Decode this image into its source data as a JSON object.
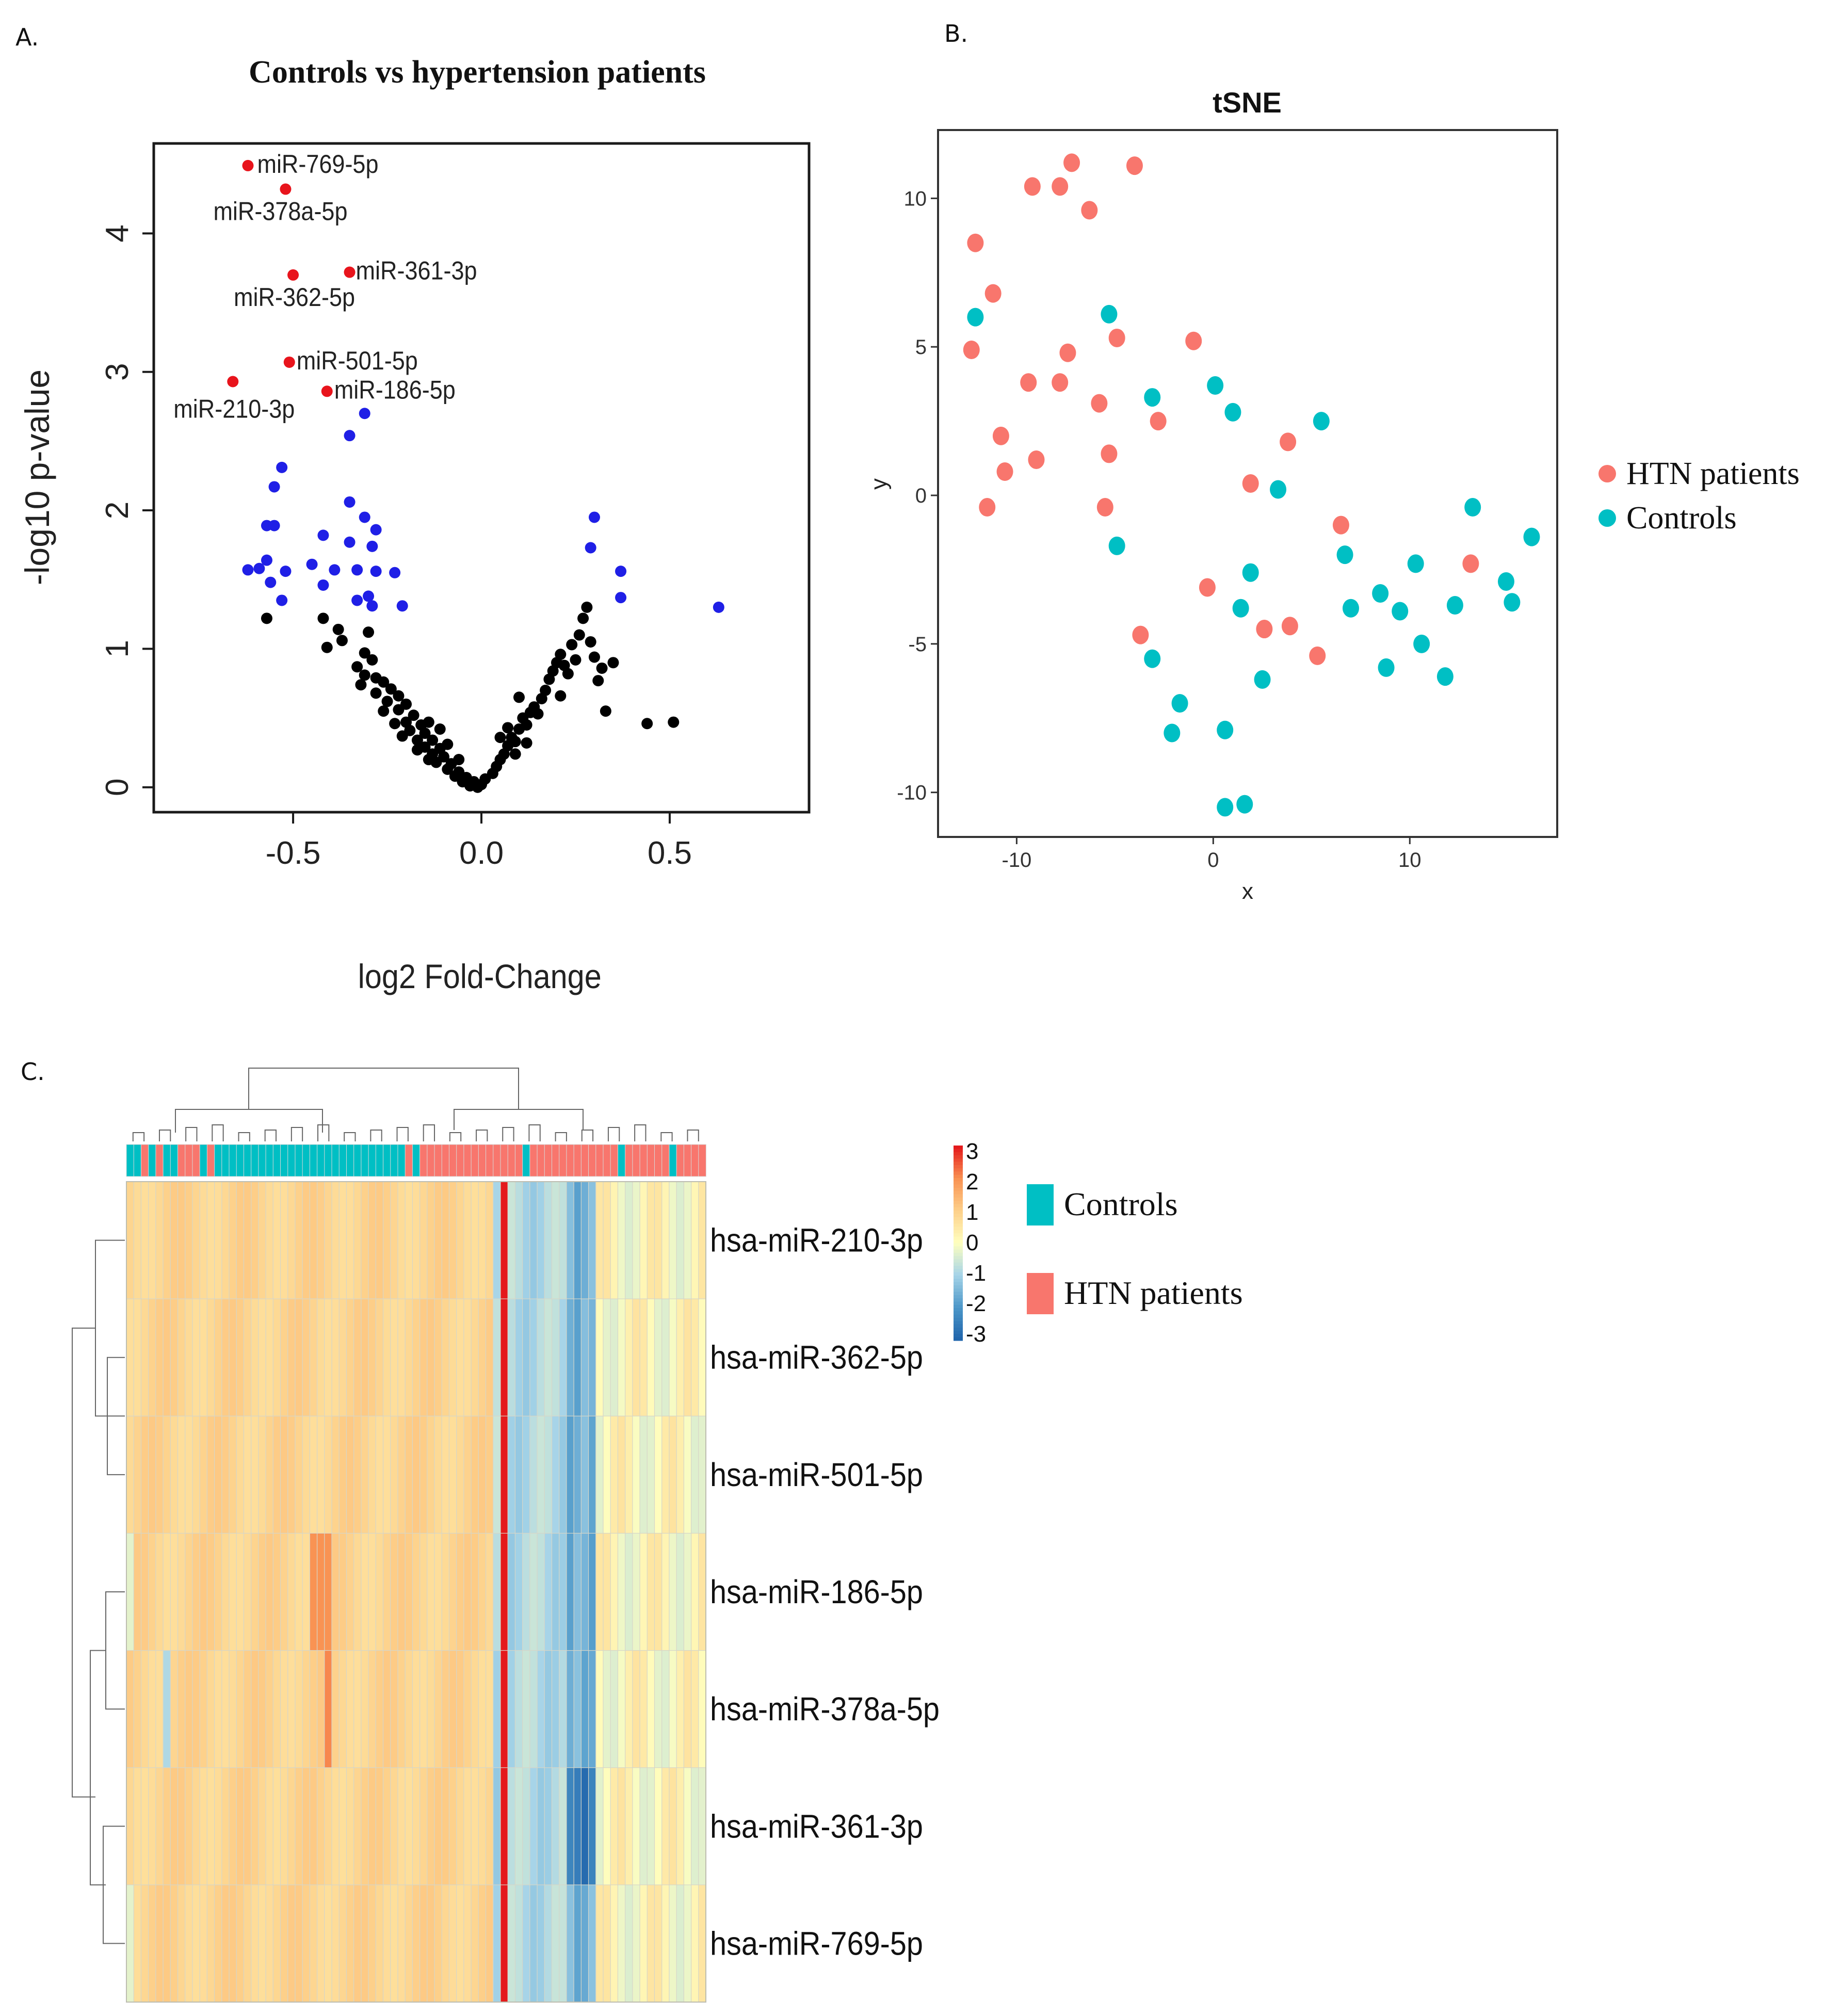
{
  "panel_labels": {
    "a": "A.",
    "b": "B.",
    "c": "C."
  },
  "chart_data": [
    {
      "type": "scatter",
      "panel": "A.",
      "title": "Controls vs hypertension patients",
      "xlabel": "log2 Fold-Change",
      "ylabel": "-log10 p-value",
      "xlim": [
        -0.87,
        0.87
      ],
      "ylim": [
        -0.18,
        4.65
      ],
      "xticks": [
        "-0.5",
        "0.0",
        "0.5"
      ],
      "xtick_values": [
        -0.5,
        0,
        0.5
      ],
      "yticks": [
        "0",
        "1",
        "2",
        "3",
        "4"
      ],
      "ytick_values": [
        0,
        1,
        2,
        3,
        4
      ],
      "colors": {
        "labeled": "#e8141c",
        "significant": "#1f1fe6",
        "other": "#000000"
      },
      "labeled_points": [
        {
          "label": "miR-769-5p",
          "x": -0.62,
          "y": 4.49
        },
        {
          "label": "miR-378a-5p",
          "x": -0.52,
          "y": 4.32
        },
        {
          "label": "miR-361-3p",
          "x": -0.35,
          "y": 3.72
        },
        {
          "label": "miR-362-5p",
          "x": -0.5,
          "y": 3.7
        },
        {
          "label": "miR-501-5p",
          "x": -0.51,
          "y": 3.07
        },
        {
          "label": "miR-210-3p",
          "x": -0.66,
          "y": 2.93
        },
        {
          "label": "miR-186-5p",
          "x": -0.41,
          "y": 2.86
        }
      ],
      "significant_points": [
        [
          -0.31,
          2.7
        ],
        [
          -0.35,
          2.54
        ],
        [
          -0.53,
          2.31
        ],
        [
          -0.55,
          2.17
        ],
        [
          -0.35,
          2.06
        ],
        [
          -0.57,
          1.89
        ],
        [
          -0.55,
          1.89
        ],
        [
          -0.31,
          1.95
        ],
        [
          -0.28,
          1.86
        ],
        [
          -0.42,
          1.82
        ],
        [
          -0.35,
          1.77
        ],
        [
          -0.29,
          1.74
        ],
        [
          -0.45,
          1.61
        ],
        [
          -0.57,
          1.64
        ],
        [
          -0.59,
          1.58
        ],
        [
          -0.62,
          1.57
        ],
        [
          -0.52,
          1.56
        ],
        [
          -0.39,
          1.57
        ],
        [
          -0.33,
          1.57
        ],
        [
          -0.28,
          1.56
        ],
        [
          -0.23,
          1.55
        ],
        [
          -0.56,
          1.48
        ],
        [
          -0.42,
          1.46
        ],
        [
          -0.3,
          1.38
        ],
        [
          -0.33,
          1.35
        ],
        [
          -0.53,
          1.35
        ],
        [
          -0.21,
          1.31
        ],
        [
          -0.29,
          1.31
        ],
        [
          0.3,
          1.95
        ],
        [
          0.29,
          1.73
        ],
        [
          0.37,
          1.56
        ],
        [
          0.37,
          1.37
        ],
        [
          0.63,
          1.3
        ]
      ],
      "other_points": [
        [
          -0.57,
          1.22
        ],
        [
          -0.42,
          1.22
        ],
        [
          -0.38,
          1.14
        ],
        [
          -0.3,
          1.12
        ],
        [
          -0.41,
          1.01
        ],
        [
          -0.37,
          1.06
        ],
        [
          -0.31,
          0.97
        ],
        [
          -0.29,
          0.92
        ],
        [
          -0.33,
          0.87
        ],
        [
          -0.31,
          0.81
        ],
        [
          -0.28,
          0.79
        ],
        [
          -0.32,
          0.74
        ],
        [
          -0.26,
          0.76
        ],
        [
          -0.24,
          0.71
        ],
        [
          -0.28,
          0.68
        ],
        [
          -0.22,
          0.66
        ],
        [
          -0.25,
          0.62
        ],
        [
          -0.2,
          0.6
        ],
        [
          -0.22,
          0.56
        ],
        [
          -0.18,
          0.52
        ],
        [
          -0.2,
          0.47
        ],
        [
          -0.16,
          0.45
        ],
        [
          -0.19,
          0.41
        ],
        [
          -0.15,
          0.39
        ],
        [
          -0.17,
          0.34
        ],
        [
          -0.13,
          0.34
        ],
        [
          -0.15,
          0.29
        ],
        [
          -0.11,
          0.28
        ],
        [
          -0.13,
          0.24
        ],
        [
          -0.1,
          0.22
        ],
        [
          -0.12,
          0.18
        ],
        [
          -0.08,
          0.17
        ],
        [
          -0.09,
          0.13
        ],
        [
          -0.06,
          0.11
        ],
        [
          -0.07,
          0.08
        ],
        [
          -0.04,
          0.07
        ],
        [
          -0.05,
          0.04
        ],
        [
          -0.02,
          0.04
        ],
        [
          -0.03,
          0.01
        ],
        [
          0.0,
          0.02
        ],
        [
          -0.01,
          0.0
        ],
        [
          -0.23,
          0.46
        ],
        [
          -0.14,
          0.47
        ],
        [
          -0.11,
          0.42
        ],
        [
          -0.21,
          0.37
        ],
        [
          -0.17,
          0.27
        ],
        [
          -0.09,
          0.31
        ],
        [
          -0.14,
          0.2
        ],
        [
          -0.06,
          0.2
        ],
        [
          -0.26,
          0.55
        ],
        [
          0.01,
          0.06
        ],
        [
          0.03,
          0.1
        ],
        [
          0.04,
          0.15
        ],
        [
          0.05,
          0.2
        ],
        [
          0.06,
          0.24
        ],
        [
          0.07,
          0.3
        ],
        [
          0.08,
          0.36
        ],
        [
          0.09,
          0.33
        ],
        [
          0.07,
          0.43
        ],
        [
          0.1,
          0.42
        ],
        [
          0.11,
          0.5
        ],
        [
          0.12,
          0.45
        ],
        [
          0.13,
          0.54
        ],
        [
          0.14,
          0.58
        ],
        [
          0.15,
          0.53
        ],
        [
          0.16,
          0.64
        ],
        [
          0.17,
          0.7
        ],
        [
          0.18,
          0.78
        ],
        [
          0.19,
          0.84
        ],
        [
          0.2,
          0.9
        ],
        [
          0.21,
          0.96
        ],
        [
          0.22,
          0.88
        ],
        [
          0.23,
          0.82
        ],
        [
          0.24,
          1.03
        ],
        [
          0.25,
          0.92
        ],
        [
          0.26,
          1.1
        ],
        [
          0.27,
          1.22
        ],
        [
          0.28,
          1.3
        ],
        [
          0.29,
          1.05
        ],
        [
          0.3,
          0.94
        ],
        [
          0.31,
          0.77
        ],
        [
          0.32,
          0.86
        ],
        [
          0.35,
          0.9
        ],
        [
          0.33,
          0.55
        ],
        [
          0.44,
          0.46
        ],
        [
          0.51,
          0.47
        ],
        [
          0.05,
          0.36
        ],
        [
          0.09,
          0.24
        ],
        [
          0.12,
          0.32
        ],
        [
          0.1,
          0.65
        ],
        [
          0.21,
          0.66
        ]
      ]
    },
    {
      "type": "scatter",
      "panel": "B.",
      "title": "tSNE",
      "xlabel": "x",
      "ylabel": "y",
      "xlim": [
        -14,
        17.5
      ],
      "ylim": [
        -11.5,
        12.3
      ],
      "xticks": [
        "-10",
        "0",
        "10"
      ],
      "xtick_values": [
        -10,
        0,
        10
      ],
      "yticks": [
        "-10",
        "-5",
        "0",
        "5",
        "10"
      ],
      "ytick_values": [
        -10,
        -5,
        0,
        5,
        10
      ],
      "legend_placement": "right",
      "series": [
        {
          "name": "HTN patients",
          "color": "#f8766d",
          "points": [
            [
              -7.2,
              11.2
            ],
            [
              -4,
              11.1
            ],
            [
              -9.2,
              10.4
            ],
            [
              -7.8,
              10.4
            ],
            [
              -6.3,
              9.6
            ],
            [
              -12.1,
              8.5
            ],
            [
              -11.2,
              6.8
            ],
            [
              -12.3,
              4.9
            ],
            [
              -7.4,
              4.8
            ],
            [
              -4.9,
              5.3
            ],
            [
              -1,
              5.2
            ],
            [
              -9.4,
              3.8
            ],
            [
              -7.8,
              3.8
            ],
            [
              -5.8,
              3.1
            ],
            [
              -2.8,
              2.5
            ],
            [
              -10.8,
              2
            ],
            [
              -9,
              1.2
            ],
            [
              -5.3,
              1.4
            ],
            [
              3.8,
              1.8
            ],
            [
              -10.6,
              0.8
            ],
            [
              -11.5,
              -0.4
            ],
            [
              -5.5,
              -0.4
            ],
            [
              1.9,
              0.4
            ],
            [
              6.5,
              -1
            ],
            [
              13.1,
              -2.3
            ],
            [
              -0.3,
              -3.1
            ],
            [
              -3.7,
              -4.7
            ],
            [
              2.6,
              -4.5
            ],
            [
              3.9,
              -4.4
            ],
            [
              5.3,
              -5.4
            ]
          ]
        },
        {
          "name": "Controls",
          "color": "#00bfc4",
          "points": [
            [
              -12.1,
              6
            ],
            [
              -5.3,
              6.1
            ],
            [
              -3.1,
              3.3
            ],
            [
              0.1,
              3.7
            ],
            [
              1,
              2.8
            ],
            [
              5.5,
              2.5
            ],
            [
              3.3,
              0.2
            ],
            [
              13.2,
              -0.4
            ],
            [
              16.2,
              -1.4
            ],
            [
              -4.9,
              -1.7
            ],
            [
              6.7,
              -2
            ],
            [
              10.3,
              -2.3
            ],
            [
              1.9,
              -2.6
            ],
            [
              8.5,
              -3.3
            ],
            [
              14.9,
              -2.9
            ],
            [
              15.2,
              -3.6
            ],
            [
              12.3,
              -3.7
            ],
            [
              7,
              -3.8
            ],
            [
              9.5,
              -3.9
            ],
            [
              1.4,
              -3.8
            ],
            [
              10.6,
              -5
            ],
            [
              -3.1,
              -5.5
            ],
            [
              8.8,
              -5.8
            ],
            [
              11.8,
              -6.1
            ],
            [
              2.5,
              -6.2
            ],
            [
              -1.7,
              -7
            ],
            [
              -2.1,
              -8
            ],
            [
              0.6,
              -7.9
            ],
            [
              0.6,
              -10.5
            ],
            [
              1.6,
              -10.4
            ]
          ]
        }
      ]
    },
    {
      "type": "heatmap",
      "panel": "C.",
      "rows": [
        "hsa-miR-210-3p",
        "hsa-miR-362-5p",
        "hsa-miR-501-5p",
        "hsa-miR-186-5p",
        "hsa-miR-378a-5p",
        "hsa-miR-361-3p",
        "hsa-miR-769-5p"
      ],
      "column_groups": [
        "C",
        "C",
        "H",
        "C",
        "H",
        "C",
        "C",
        "H",
        "H",
        "H",
        "C",
        "H",
        "C",
        "C",
        "C",
        "C",
        "C",
        "C",
        "C",
        "C",
        "C",
        "C",
        "C",
        "C",
        "C",
        "C",
        "C",
        "C",
        "C",
        "C",
        "C",
        "C",
        "C",
        "C",
        "C",
        "C",
        "C",
        "C",
        "H",
        "C",
        "H",
        "H",
        "H",
        "H",
        "H",
        "H",
        "H",
        "H",
        "H",
        "H",
        "H",
        "H",
        "H",
        "H",
        "C",
        "H",
        "H",
        "H",
        "H",
        "H",
        "H",
        "H",
        "H",
        "H",
        "H",
        "H",
        "H",
        "C",
        "H",
        "H",
        "H",
        "H",
        "H",
        "H",
        "C",
        "H",
        "H",
        "H",
        "H"
      ],
      "legend": {
        "color_scale": {
          "min": -3,
          "max": 3,
          "ticks": [
            "3",
            "2",
            "1",
            "0",
            "-1",
            "-2",
            "-3"
          ],
          "colors": [
            "#2166ac",
            "#4d98c9",
            "#a6d4e8",
            "#ffffbf",
            "#fdd08a",
            "#f99353",
            "#e41a1c"
          ]
        },
        "groups": [
          {
            "label": "Controls",
            "code": "C",
            "color": "#00bfc4"
          },
          {
            "label": "HTN patients",
            "code": "H",
            "color": "#f8766d"
          }
        ]
      }
    }
  ]
}
